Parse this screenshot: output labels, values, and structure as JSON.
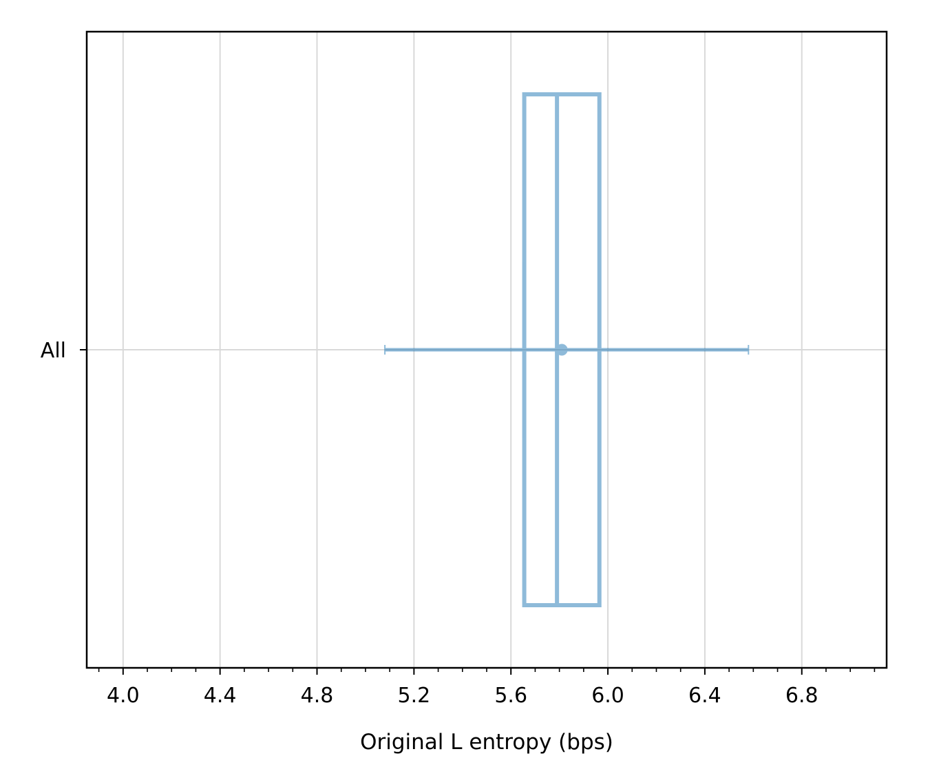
{
  "chart_data": {
    "type": "box",
    "orientation": "horizontal",
    "xlabel": "Original L entropy (bps)",
    "ylabel": "",
    "xlim": [
      3.85,
      7.15
    ],
    "x_ticks": [
      4.0,
      4.4,
      4.8,
      5.2,
      5.6,
      6.0,
      6.4,
      6.8
    ],
    "x_tick_labels": [
      "4.0",
      "4.4",
      "4.8",
      "5.2",
      "5.6",
      "6.0",
      "6.4",
      "6.8"
    ],
    "x_minor_step": 0.1,
    "categories": [
      "All"
    ],
    "series": [
      {
        "box_q1": 5.655,
        "box_median": 5.79,
        "box_q3": 5.965,
        "mean": 5.81,
        "errorbar_low": 5.08,
        "errorbar_high": 6.58
      }
    ],
    "grid": true,
    "color": "#1f77b4"
  }
}
